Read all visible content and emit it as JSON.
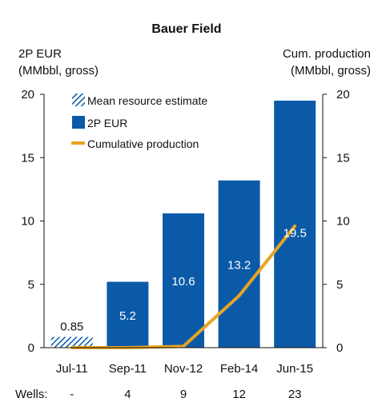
{
  "chart_data": {
    "type": "bar",
    "title": "Bauer Field",
    "ylabel_left": [
      "2P EUR",
      "(MMbbl, gross)"
    ],
    "ylabel_right": [
      "Cum. production",
      "(MMbbl, gross)"
    ],
    "ylim": [
      0,
      20
    ],
    "yticks": [
      "0",
      "5",
      "10",
      "15",
      "20"
    ],
    "categories": [
      "Jul-11",
      "Sep-11",
      "Nov-12",
      "Feb-14",
      "Jun-15"
    ],
    "series": [
      {
        "name": "Mean resource estimate",
        "kind": "bar-hatched",
        "values": [
          0.85,
          null,
          null,
          null,
          null
        ],
        "labels": [
          "0.85",
          "",
          "",
          "",
          ""
        ]
      },
      {
        "name": "2P EUR",
        "kind": "bar",
        "values": [
          null,
          5.2,
          10.6,
          13.2,
          19.5
        ],
        "labels": [
          "",
          "5.2",
          "10.6",
          "13.2",
          "19.5"
        ]
      },
      {
        "name": "Cumulative production",
        "kind": "line",
        "x": [
          "Jul-11",
          "Sep-11",
          "Nov-12",
          "Feb-14",
          "Jun-15"
        ],
        "values": [
          0,
          0,
          0.1,
          4.1,
          9.6
        ]
      }
    ],
    "wells_label": "Wells:",
    "wells": [
      "-",
      "4",
      "9",
      "12",
      "23"
    ],
    "legend_position": "top-left",
    "grid": false,
    "colors": {
      "bar": "#0b5aa8",
      "hatch": "#0b5aa8",
      "line": "#e8a424",
      "bar_label_inside": "#ffffff",
      "bar_label_outside": "#111111"
    }
  }
}
